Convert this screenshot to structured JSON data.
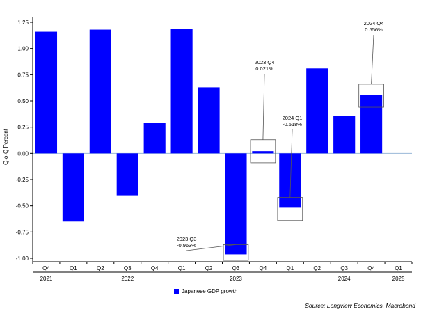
{
  "chart_data": {
    "type": "bar",
    "ylabel": "Q-o-Q Percent",
    "ylim": [
      -1.0,
      1.25
    ],
    "yticks": [
      1.25,
      1.0,
      0.75,
      0.5,
      0.25,
      0.0,
      -0.25,
      -0.5,
      -0.75,
      -1.0
    ],
    "ytick_labels": [
      "1.25",
      "1.00",
      "0.75",
      "0.50",
      "0.25",
      "0.00",
      "-0.25",
      "-0.50",
      "-0.75",
      "-1.00"
    ],
    "categories": [
      "Q4",
      "Q1",
      "Q2",
      "Q3",
      "Q4",
      "Q1",
      "Q2",
      "Q3",
      "Q4",
      "Q1",
      "Q2",
      "Q3",
      "Q4",
      "Q1"
    ],
    "years": [
      {
        "label": "2021",
        "index": 0
      },
      {
        "label": "2022",
        "index": 3
      },
      {
        "label": "2023",
        "index": 7
      },
      {
        "label": "2024",
        "index": 11
      },
      {
        "label": "2025",
        "index": 13
      }
    ],
    "series": [
      {
        "name": "Japanese GDP growth",
        "color": "#0000ff",
        "values": [
          1.16,
          -0.65,
          1.18,
          -0.4,
          0.29,
          1.19,
          0.63,
          -0.963,
          0.021,
          -0.518,
          0.81,
          0.36,
          0.556,
          null
        ]
      }
    ],
    "annotations": [
      {
        "index": 7,
        "line1": "2023 Q3",
        "line2": "-0.963%"
      },
      {
        "index": 8,
        "line1": "2023 Q4",
        "line2": "0.021%"
      },
      {
        "index": 9,
        "line1": "2024 Q1",
        "line2": "-0.518%"
      },
      {
        "index": 12,
        "line1": "2024 Q4",
        "line2": "0.556%"
      }
    ],
    "legend_position": "bottom-center",
    "grid": false
  },
  "source": "Source: Longview Economics, Macrobond"
}
